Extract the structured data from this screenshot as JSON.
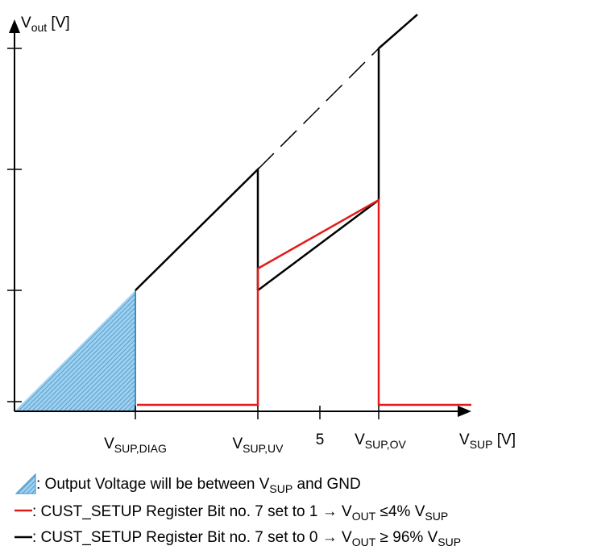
{
  "y_axis": {
    "label": [
      "V",
      "out",
      " [V]"
    ]
  },
  "x_axis": {
    "labels": [
      [
        "V",
        "SUP,DIAG"
      ],
      [
        "V",
        "SUP,UV"
      ],
      [
        "5"
      ],
      [
        "V",
        "SUP,OV"
      ],
      [
        "V",
        "SUP",
        " [V]"
      ]
    ]
  },
  "legend": [
    [
      ": Output Voltage will be between ",
      "V",
      "SUP",
      " and GND"
    ],
    [
      ": CUST_SETUP Register Bit no. 7 set to 1 → ",
      "V",
      "OUT",
      " ≤4% ",
      "V",
      "SUP"
    ],
    [
      ": CUST_SETUP Register Bit no. 7 set to 0 → ",
      "V",
      "OUT",
      " ≥ 96% ",
      "V",
      "SUP"
    ]
  ]
}
